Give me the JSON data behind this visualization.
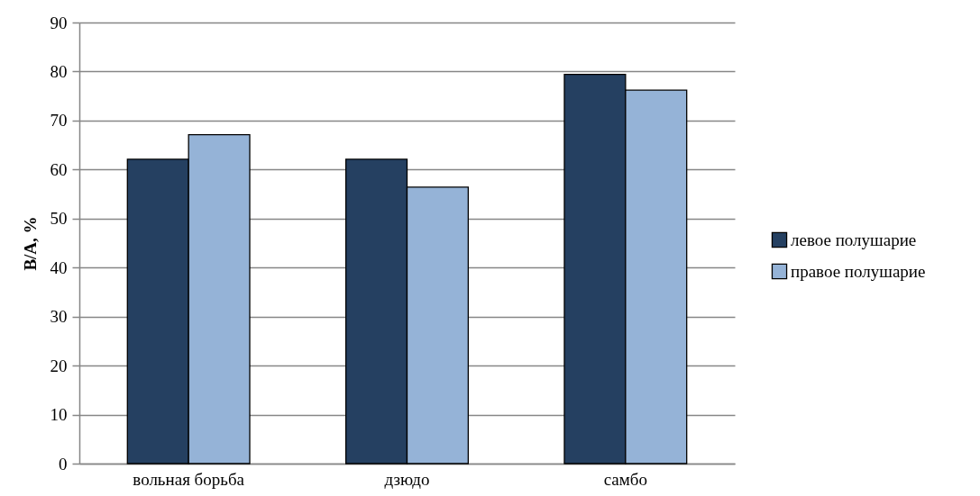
{
  "chart_data": {
    "type": "bar",
    "ylabel": "В/А, %",
    "categories": [
      "вольная борьба",
      "дзюдо",
      "самбо"
    ],
    "series": [
      {
        "name": "левое полушарие",
        "color": "#254061",
        "values": [
          62.1,
          62.1,
          79.4
        ]
      },
      {
        "name": "правое полушарие",
        "color": "#95b3d7",
        "values": [
          67.1,
          56.4,
          76.2
        ]
      }
    ],
    "ylim": [
      0,
      90
    ],
    "yticks": [
      0,
      10,
      20,
      30,
      40,
      50,
      60,
      70,
      80,
      90
    ],
    "grid": "y",
    "legend": "right"
  }
}
